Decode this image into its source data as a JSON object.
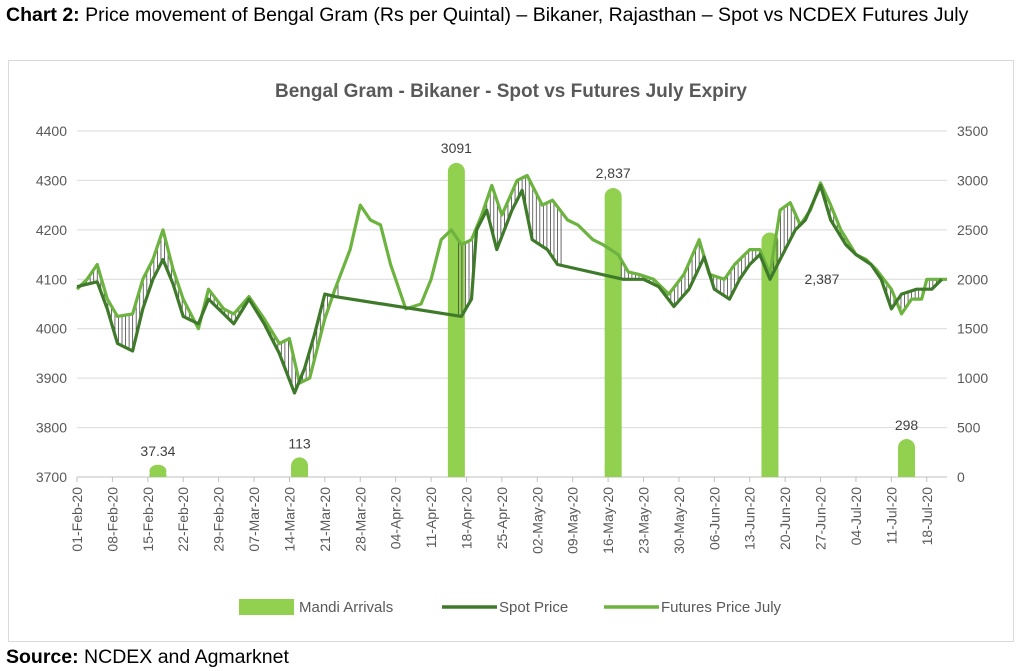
{
  "caption": {
    "label": "Chart 2:",
    "text": "Price movement of Bengal Gram (Rs per Quintal) – Bikaner, Rajasthan – Spot vs NCDEX Futures July"
  },
  "source": {
    "label": "Source:",
    "text": "NCDEX and Agmarknet"
  },
  "colors": {
    "arrivals": "#92d050",
    "spot": "#3f7a2b",
    "futures": "#6cb33f",
    "hilo": "#444444",
    "grid": "#d9d9d9",
    "axis_text": "#595959"
  },
  "chart_data": {
    "type": "line",
    "title": "Bengal Gram - Bikaner - Spot vs Futures July Expiry",
    "xlabel": "",
    "ylabel": "",
    "y_left": {
      "min": 3700,
      "max": 4400,
      "ticks": [
        3700,
        3800,
        3900,
        4000,
        4100,
        4200,
        4300,
        4400
      ]
    },
    "y_right": {
      "min": 0,
      "max": 3500,
      "ticks": [
        0,
        500,
        1000,
        1500,
        2000,
        2500,
        3000,
        3500
      ]
    },
    "x_range": [
      "2020-02-01",
      "2020-07-22"
    ],
    "x_tick_labels": [
      "01-Feb-20",
      "08-Feb-20",
      "15-Feb-20",
      "22-Feb-20",
      "29-Feb-20",
      "07-Mar-20",
      "14-Mar-20",
      "21-Mar-20",
      "28-Mar-20",
      "04-Apr-20",
      "11-Apr-20",
      "18-Apr-20",
      "25-Apr-20",
      "02-May-20",
      "09-May-20",
      "16-May-20",
      "23-May-20",
      "30-May-20",
      "06-Jun-20",
      "13-Jun-20",
      "20-Jun-20",
      "27-Jun-20",
      "04-Jul-20",
      "11-Jul-20",
      "18-Jul-20"
    ],
    "legend": {
      "position": "bottom",
      "entries": [
        "Mandi Arrivals",
        "Spot Price",
        "Futures Price July"
      ]
    },
    "grid": true,
    "series": [
      {
        "name": "Mandi Arrivals",
        "kind": "bar",
        "axis": "right",
        "points": [
          {
            "x": "2020-02-17",
            "y": 37.34,
            "label": "37.34"
          },
          {
            "x": "2020-03-16",
            "y": 113,
            "label": "113"
          },
          {
            "x": "2020-04-16",
            "y": 3091,
            "label": "3091"
          },
          {
            "x": "2020-05-17",
            "y": 2837,
            "label": "2,837"
          },
          {
            "x": "2020-06-17",
            "y": 2387,
            "label": "2,387"
          },
          {
            "x": "2020-07-14",
            "y": 298,
            "label": "298"
          }
        ]
      },
      {
        "name": "Spot Price",
        "kind": "line",
        "axis": "left",
        "points": [
          {
            "x": "2020-02-01",
            "y": 4085
          },
          {
            "x": "2020-02-03",
            "y": 4090
          },
          {
            "x": "2020-02-05",
            "y": 4095
          },
          {
            "x": "2020-02-07",
            "y": 4040
          },
          {
            "x": "2020-02-09",
            "y": 3970
          },
          {
            "x": "2020-02-12",
            "y": 3955
          },
          {
            "x": "2020-02-14",
            "y": 4040
          },
          {
            "x": "2020-02-16",
            "y": 4100
          },
          {
            "x": "2020-02-18",
            "y": 4140
          },
          {
            "x": "2020-02-20",
            "y": 4090
          },
          {
            "x": "2020-02-22",
            "y": 4025
          },
          {
            "x": "2020-02-25",
            "y": 4010
          },
          {
            "x": "2020-02-27",
            "y": 4060
          },
          {
            "x": "2020-03-01",
            "y": 4030
          },
          {
            "x": "2020-03-03",
            "y": 4010
          },
          {
            "x": "2020-03-06",
            "y": 4060
          },
          {
            "x": "2020-03-09",
            "y": 4010
          },
          {
            "x": "2020-03-12",
            "y": 3950
          },
          {
            "x": "2020-03-15",
            "y": 3870
          },
          {
            "x": "2020-03-17",
            "y": 3920
          },
          {
            "x": "2020-03-19",
            "y": 3990
          },
          {
            "x": "2020-03-21",
            "y": 4070
          },
          {
            "x": "2020-03-23",
            "y": 4065
          },
          {
            "x": "2020-04-17",
            "y": 4025
          },
          {
            "x": "2020-04-19",
            "y": 4060
          },
          {
            "x": "2020-04-20",
            "y": 4200
          },
          {
            "x": "2020-04-22",
            "y": 4240
          },
          {
            "x": "2020-04-24",
            "y": 4160
          },
          {
            "x": "2020-04-27",
            "y": 4240
          },
          {
            "x": "2020-04-29",
            "y": 4280
          },
          {
            "x": "2020-05-01",
            "y": 4180
          },
          {
            "x": "2020-05-04",
            "y": 4160
          },
          {
            "x": "2020-05-06",
            "y": 4130
          },
          {
            "x": "2020-05-19",
            "y": 4100
          },
          {
            "x": "2020-05-21",
            "y": 4100
          },
          {
            "x": "2020-05-23",
            "y": 4100
          },
          {
            "x": "2020-05-26",
            "y": 4085
          },
          {
            "x": "2020-05-29",
            "y": 4045
          },
          {
            "x": "2020-06-01",
            "y": 4080
          },
          {
            "x": "2020-06-04",
            "y": 4145
          },
          {
            "x": "2020-06-06",
            "y": 4080
          },
          {
            "x": "2020-06-09",
            "y": 4060
          },
          {
            "x": "2020-06-11",
            "y": 4100
          },
          {
            "x": "2020-06-13",
            "y": 4130
          },
          {
            "x": "2020-06-15",
            "y": 4150
          },
          {
            "x": "2020-06-17",
            "y": 4100
          },
          {
            "x": "2020-06-19",
            "y": 4140
          },
          {
            "x": "2020-06-22",
            "y": 4200
          },
          {
            "x": "2020-06-24",
            "y": 4220
          },
          {
            "x": "2020-06-27",
            "y": 4290
          },
          {
            "x": "2020-06-29",
            "y": 4220
          },
          {
            "x": "2020-07-02",
            "y": 4170
          },
          {
            "x": "2020-07-04",
            "y": 4150
          },
          {
            "x": "2020-07-07",
            "y": 4130
          },
          {
            "x": "2020-07-09",
            "y": 4100
          },
          {
            "x": "2020-07-11",
            "y": 4040
          },
          {
            "x": "2020-07-13",
            "y": 4070
          },
          {
            "x": "2020-07-16",
            "y": 4080
          },
          {
            "x": "2020-07-19",
            "y": 4080
          },
          {
            "x": "2020-07-21",
            "y": 4100
          }
        ]
      },
      {
        "name": "Futures Price July",
        "kind": "line",
        "axis": "left",
        "points": [
          {
            "x": "2020-02-01",
            "y": 4080
          },
          {
            "x": "2020-02-03",
            "y": 4100
          },
          {
            "x": "2020-02-05",
            "y": 4130
          },
          {
            "x": "2020-02-07",
            "y": 4060
          },
          {
            "x": "2020-02-09",
            "y": 4025
          },
          {
            "x": "2020-02-12",
            "y": 4030
          },
          {
            "x": "2020-02-14",
            "y": 4100
          },
          {
            "x": "2020-02-16",
            "y": 4140
          },
          {
            "x": "2020-02-18",
            "y": 4200
          },
          {
            "x": "2020-02-20",
            "y": 4120
          },
          {
            "x": "2020-02-22",
            "y": 4060
          },
          {
            "x": "2020-02-25",
            "y": 4000
          },
          {
            "x": "2020-02-27",
            "y": 4080
          },
          {
            "x": "2020-03-01",
            "y": 4040
          },
          {
            "x": "2020-03-03",
            "y": 4030
          },
          {
            "x": "2020-03-06",
            "y": 4065
          },
          {
            "x": "2020-03-09",
            "y": 4020
          },
          {
            "x": "2020-03-12",
            "y": 3970
          },
          {
            "x": "2020-03-14",
            "y": 3980
          },
          {
            "x": "2020-03-16",
            "y": 3890
          },
          {
            "x": "2020-03-18",
            "y": 3900
          },
          {
            "x": "2020-03-21",
            "y": 4020
          },
          {
            "x": "2020-03-23",
            "y": 4080
          },
          {
            "x": "2020-03-26",
            "y": 4160
          },
          {
            "x": "2020-03-28",
            "y": 4250
          },
          {
            "x": "2020-03-30",
            "y": 4220
          },
          {
            "x": "2020-04-01",
            "y": 4210
          },
          {
            "x": "2020-04-03",
            "y": 4130
          },
          {
            "x": "2020-04-06",
            "y": 4040
          },
          {
            "x": "2020-04-09",
            "y": 4050
          },
          {
            "x": "2020-04-11",
            "y": 4100
          },
          {
            "x": "2020-04-13",
            "y": 4180
          },
          {
            "x": "2020-04-15",
            "y": 4200
          },
          {
            "x": "2020-04-17",
            "y": 4170
          },
          {
            "x": "2020-04-19",
            "y": 4180
          },
          {
            "x": "2020-04-21",
            "y": 4230
          },
          {
            "x": "2020-04-23",
            "y": 4290
          },
          {
            "x": "2020-04-25",
            "y": 4230
          },
          {
            "x": "2020-04-28",
            "y": 4300
          },
          {
            "x": "2020-04-30",
            "y": 4310
          },
          {
            "x": "2020-05-03",
            "y": 4250
          },
          {
            "x": "2020-05-05",
            "y": 4260
          },
          {
            "x": "2020-05-08",
            "y": 4220
          },
          {
            "x": "2020-05-10",
            "y": 4210
          },
          {
            "x": "2020-05-13",
            "y": 4180
          },
          {
            "x": "2020-05-15",
            "y": 4170
          },
          {
            "x": "2020-05-18",
            "y": 4150
          },
          {
            "x": "2020-05-20",
            "y": 4115
          },
          {
            "x": "2020-05-22",
            "y": 4110
          },
          {
            "x": "2020-05-25",
            "y": 4100
          },
          {
            "x": "2020-05-28",
            "y": 4070
          },
          {
            "x": "2020-05-31",
            "y": 4110
          },
          {
            "x": "2020-06-03",
            "y": 4180
          },
          {
            "x": "2020-06-05",
            "y": 4110
          },
          {
            "x": "2020-06-08",
            "y": 4100
          },
          {
            "x": "2020-06-10",
            "y": 4130
          },
          {
            "x": "2020-06-13",
            "y": 4160
          },
          {
            "x": "2020-06-15",
            "y": 4160
          },
          {
            "x": "2020-06-17",
            "y": 4110
          },
          {
            "x": "2020-06-19",
            "y": 4240
          },
          {
            "x": "2020-06-21",
            "y": 4255
          },
          {
            "x": "2020-06-23",
            "y": 4210
          },
          {
            "x": "2020-06-25",
            "y": 4240
          },
          {
            "x": "2020-06-27",
            "y": 4295
          },
          {
            "x": "2020-06-29",
            "y": 4250
          },
          {
            "x": "2020-07-01",
            "y": 4200
          },
          {
            "x": "2020-07-04",
            "y": 4150
          },
          {
            "x": "2020-07-06",
            "y": 4140
          },
          {
            "x": "2020-07-08",
            "y": 4120
          },
          {
            "x": "2020-07-11",
            "y": 4080
          },
          {
            "x": "2020-07-13",
            "y": 4030
          },
          {
            "x": "2020-07-15",
            "y": 4060
          },
          {
            "x": "2020-07-17",
            "y": 4060
          },
          {
            "x": "2020-07-18",
            "y": 4100
          },
          {
            "x": "2020-07-20",
            "y": 4100
          },
          {
            "x": "2020-07-22",
            "y": 4100
          }
        ]
      }
    ]
  }
}
